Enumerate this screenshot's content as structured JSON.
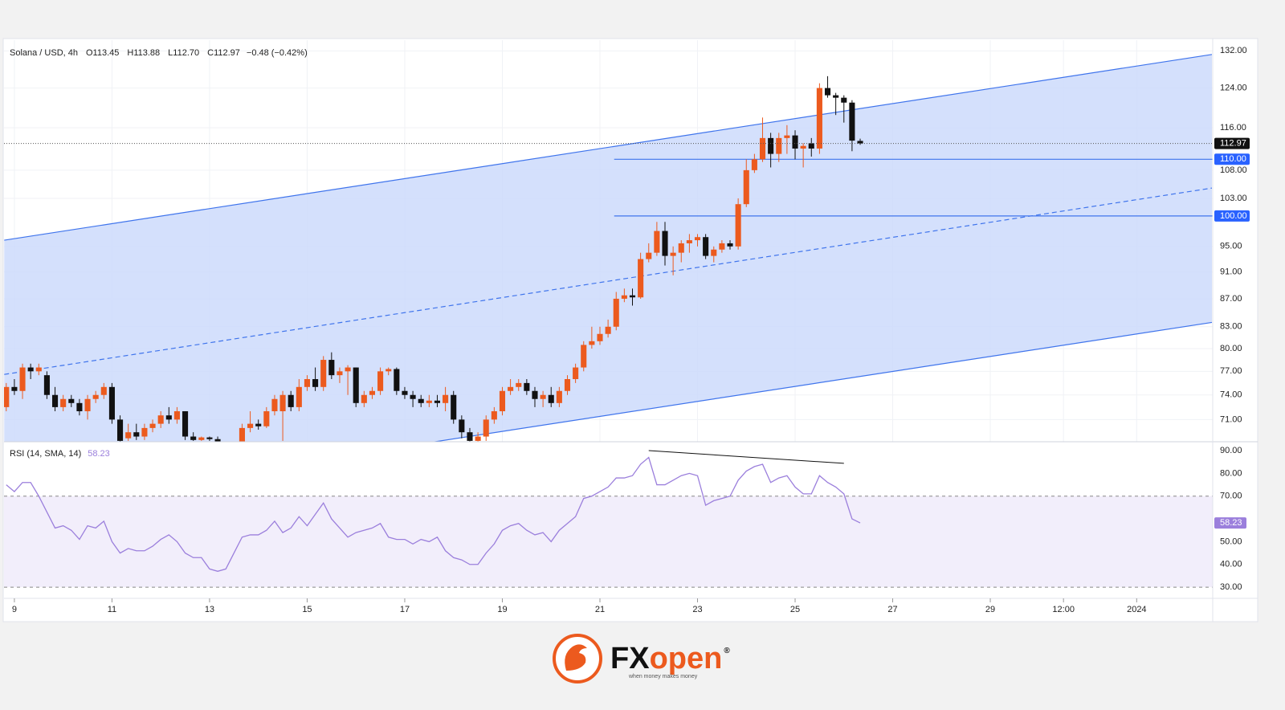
{
  "chart_data": [
    {
      "type": "candlestick",
      "title": "Solana / USD, 4h",
      "ohlc_labels": [
        "O113.45",
        "H113.88",
        "L112.70",
        "C112.97",
        "−0.48 (−0.42%)"
      ],
      "x": [
        -4,
        0,
        4,
        8,
        12,
        16,
        20,
        24,
        28,
        32,
        36,
        40,
        44,
        48,
        52,
        56,
        60,
        64,
        68,
        72,
        76,
        80,
        84,
        88,
        92,
        96,
        100,
        104,
        108,
        112,
        116,
        120,
        124,
        128,
        132,
        136,
        140,
        144,
        148,
        152,
        156,
        160,
        164,
        168,
        172,
        176,
        180,
        184,
        188,
        192,
        196,
        200,
        204,
        208,
        212,
        216,
        220,
        224,
        228,
        232,
        236,
        240,
        244,
        248,
        252,
        256,
        260,
        264,
        268,
        272,
        276,
        280,
        284,
        288,
        292,
        296,
        300,
        304,
        308,
        312,
        316,
        320,
        324,
        328,
        332,
        336,
        340,
        344,
        348,
        352,
        356,
        360,
        364,
        368,
        372,
        376,
        380,
        384,
        388,
        392,
        396,
        400,
        404,
        408,
        412,
        416
      ],
      "open": [
        72.5,
        75,
        74.5,
        77.5,
        77,
        76.5,
        74,
        72.5,
        73.5,
        73,
        72,
        73.5,
        74,
        75,
        71,
        68.8,
        69.5,
        69,
        70,
        70.5,
        71.5,
        71,
        72,
        69,
        68.6,
        68.9,
        68.7,
        67.5,
        67,
        68,
        70,
        70.5,
        70.2,
        72,
        72,
        74,
        72.5,
        75,
        76,
        75,
        78.5,
        76.5,
        77,
        77.5,
        73,
        74,
        74.5,
        77,
        77.3,
        74.5,
        74,
        73.5,
        73,
        73.3,
        73,
        74,
        71,
        69.5,
        68.5,
        69,
        71,
        72,
        74.5,
        75,
        75.5,
        74.5,
        73.5,
        74,
        73,
        74.5,
        76,
        77.5,
        80.5,
        81,
        82,
        83,
        87,
        87.5,
        87.2,
        93,
        94,
        97.5,
        93.5,
        94,
        95.5,
        96,
        96.5,
        93.5,
        94.5,
        95.5,
        95,
        102,
        108,
        110,
        114,
        111,
        114,
        114.5,
        112,
        113,
        112,
        124,
        122.5,
        122,
        121,
        113.45
      ],
      "high": [
        75.5,
        76,
        78,
        78,
        78,
        77,
        75,
        74,
        74,
        73.5,
        74,
        74.5,
        75.5,
        75.5,
        71.5,
        70.5,
        70.5,
        70.5,
        71,
        72,
        72.5,
        72.5,
        72,
        69.5,
        69,
        69,
        69,
        68,
        68.3,
        70.5,
        72,
        71,
        72.5,
        74,
        74.5,
        74.5,
        76,
        76.5,
        77.5,
        79,
        79.5,
        77.5,
        77.8,
        77.5,
        74.5,
        75,
        77.5,
        77.5,
        77.5,
        75,
        74.5,
        74,
        74,
        74,
        75,
        74.5,
        71.5,
        70,
        69.5,
        71.5,
        72.5,
        75,
        76,
        76,
        76,
        75,
        74.5,
        75,
        75,
        76.5,
        78,
        81,
        83,
        83,
        84,
        88,
        88.5,
        88.5,
        94,
        95.5,
        99,
        99,
        95,
        96,
        97,
        97,
        97,
        95,
        96,
        96,
        103,
        110,
        111,
        118,
        115,
        115,
        116.5,
        115.5,
        113,
        114,
        125,
        126.5,
        123,
        122.5,
        121.5,
        113.88
      ],
      "low": [
        72,
        74,
        73.5,
        76,
        76.5,
        73.5,
        72,
        72,
        72.5,
        71.5,
        71,
        73,
        73.5,
        70.5,
        68,
        68.5,
        68.6,
        68.6,
        69.5,
        70,
        70.5,
        70.5,
        68.6,
        68.5,
        68.5,
        68.5,
        67,
        66.5,
        66.8,
        67.5,
        69.5,
        69.8,
        70,
        71.5,
        68.5,
        72,
        72,
        74.5,
        74.5,
        74.5,
        76,
        75.5,
        74,
        72.5,
        72.5,
        73.5,
        74,
        76.5,
        74,
        73.5,
        72.5,
        72.5,
        72.5,
        72.5,
        72,
        70.5,
        68.8,
        68,
        68,
        68.5,
        70.5,
        71.5,
        74,
        74.5,
        74,
        72.5,
        72.5,
        72.5,
        72.5,
        74,
        75.5,
        77,
        80,
        80.5,
        81.5,
        82.5,
        86.5,
        86,
        87,
        92.5,
        93.5,
        92,
        90.5,
        92.5,
        94,
        95,
        93,
        92.5,
        94,
        94.5,
        94.5,
        101.5,
        107.5,
        109.5,
        108.5,
        109.5,
        111,
        110,
        108.5,
        110.5,
        111,
        122,
        118.5,
        117,
        111.5,
        112.7
      ],
      "close": [
        75,
        74.5,
        77.5,
        77,
        77.5,
        74,
        72.5,
        73.5,
        73,
        72,
        73.5,
        74,
        75,
        71,
        68.5,
        69.5,
        69,
        70,
        70.5,
        71.5,
        71,
        72,
        69,
        68.6,
        68.9,
        68.7,
        67.5,
        67,
        68,
        70,
        70.5,
        70.2,
        72,
        73.5,
        74,
        72.5,
        75,
        76,
        75,
        78.5,
        76.5,
        77,
        77.5,
        73,
        74,
        74.5,
        77,
        77.3,
        74.5,
        74,
        73.5,
        73,
        73.3,
        73,
        74,
        71,
        69.5,
        68.5,
        69,
        71,
        72,
        74.5,
        75,
        75.5,
        74.5,
        73.5,
        74,
        73,
        74.5,
        76,
        77.5,
        80.5,
        81,
        82,
        83,
        87,
        87.5,
        87.2,
        93,
        94,
        97.5,
        93.5,
        94,
        95.5,
        96,
        96.5,
        93.5,
        94.5,
        95.5,
        95,
        102,
        108,
        110,
        114,
        111,
        114,
        114.5,
        112,
        112.5,
        112,
        124,
        122.5,
        122,
        121,
        113.5,
        112.97
      ],
      "up_color": "#ec5a1e",
      "down_color": "#111111",
      "log_scale": true,
      "ylim": [
        68.4,
        134.4
      ],
      "yticks": [
        {
          "value": 71,
          "label": "71.00"
        },
        {
          "value": 74,
          "label": "74.00"
        },
        {
          "value": 77,
          "label": "77.00"
        },
        {
          "value": 80,
          "label": "80.00"
        },
        {
          "value": 83,
          "label": "83.00"
        },
        {
          "value": 87,
          "label": "87.00"
        },
        {
          "value": 91,
          "label": "91.00"
        },
        {
          "value": 95,
          "label": "95.00"
        },
        {
          "value": 103,
          "label": "103.00"
        },
        {
          "value": 108,
          "label": "108.00"
        },
        {
          "value": 116,
          "label": "116.00"
        },
        {
          "value": 124,
          "label": "124.00"
        },
        {
          "value": 132,
          "label": "132.00"
        }
      ],
      "xlim": [
        -5.1,
        589.4
      ],
      "xticks": [
        {
          "value": 0,
          "label": "9"
        },
        {
          "value": 48,
          "label": "11"
        },
        {
          "value": 96,
          "label": "13"
        },
        {
          "value": 144,
          "label": "15"
        },
        {
          "value": 192,
          "label": "17"
        },
        {
          "value": 240,
          "label": "19"
        },
        {
          "value": 288,
          "label": "21"
        },
        {
          "value": 336,
          "label": "23"
        },
        {
          "value": 384,
          "label": "25"
        },
        {
          "value": 432,
          "label": "27"
        },
        {
          "value": 480,
          "label": "29"
        },
        {
          "value": 516,
          "label": "12:00"
        },
        {
          "value": 552,
          "label": "2024"
        }
      ],
      "last_price": 112.97,
      "levels": [
        {
          "value": 110,
          "label": "110.00",
          "from_x": 295
        },
        {
          "value": 100,
          "label": "100.00",
          "from_x": 295
        }
      ],
      "channel": {
        "upper": [
          [
            -5,
            96.0
          ],
          [
            589,
            131.2
          ]
        ],
        "middle": [
          [
            -5,
            76.6
          ],
          [
            589,
            104.8
          ]
        ],
        "lower": [
          [
            -5,
            61.2
          ],
          [
            589,
            83.6
          ]
        ],
        "color": "#3f74ec",
        "fill": "#cddbfb"
      }
    },
    {
      "type": "line",
      "title": "RSI (14, SMA, 14)",
      "last_value": 58.23,
      "x": [
        -4,
        0,
        4,
        8,
        12,
        16,
        20,
        24,
        28,
        32,
        36,
        40,
        44,
        48,
        52,
        56,
        60,
        64,
        68,
        72,
        76,
        80,
        84,
        88,
        92,
        96,
        100,
        104,
        108,
        112,
        116,
        120,
        124,
        128,
        132,
        136,
        140,
        144,
        148,
        152,
        156,
        160,
        164,
        168,
        172,
        176,
        180,
        184,
        188,
        192,
        196,
        200,
        204,
        208,
        212,
        216,
        220,
        224,
        228,
        232,
        236,
        240,
        244,
        248,
        252,
        256,
        260,
        264,
        268,
        272,
        276,
        280,
        284,
        288,
        292,
        296,
        300,
        304,
        308,
        312,
        316,
        320,
        324,
        328,
        332,
        336,
        340,
        344,
        348,
        352,
        356,
        360,
        364,
        368,
        372,
        376,
        380,
        384,
        388,
        392,
        396,
        400,
        404,
        408,
        412,
        416
      ],
      "values": [
        75,
        72,
        76,
        76,
        70,
        63,
        56,
        57,
        55,
        51,
        57,
        56,
        59,
        50,
        45,
        47,
        46,
        46,
        48,
        51,
        53,
        50,
        45,
        43,
        43,
        38,
        37,
        38,
        45,
        52,
        53,
        53,
        55,
        59,
        54,
        56,
        61,
        57,
        62,
        67,
        60,
        56,
        52,
        54,
        55,
        56,
        58,
        52,
        51,
        51,
        49,
        51,
        50,
        52,
        46,
        43,
        42,
        40,
        40,
        45,
        49,
        55,
        57,
        58,
        55,
        53,
        54,
        50,
        55,
        58,
        61,
        69,
        70,
        72,
        74,
        78,
        78,
        79,
        84,
        87,
        75,
        75,
        77,
        79,
        80,
        79,
        66,
        68,
        69,
        70,
        77,
        81,
        83,
        84,
        76,
        78,
        79,
        74,
        71,
        71,
        79,
        76,
        74,
        71,
        60,
        58.23
      ],
      "color": "#9b7fdc",
      "ylim": [
        25.1,
        93.9
      ],
      "yticks": [
        {
          "value": 30,
          "label": "30.00"
        },
        {
          "value": 40,
          "label": "40.00"
        },
        {
          "value": 50,
          "label": "50.00"
        },
        {
          "value": 70,
          "label": "70.00"
        },
        {
          "value": 80,
          "label": "80.00"
        },
        {
          "value": 90,
          "label": "90.00"
        }
      ],
      "band": [
        30,
        70
      ],
      "divergence": [
        [
          312,
          90
        ],
        [
          408,
          84.4
        ]
      ]
    }
  ],
  "logo": {
    "brand_prefix": "FX",
    "brand_suffix": "open",
    "mark": "®",
    "tagline": "when money makes money"
  }
}
